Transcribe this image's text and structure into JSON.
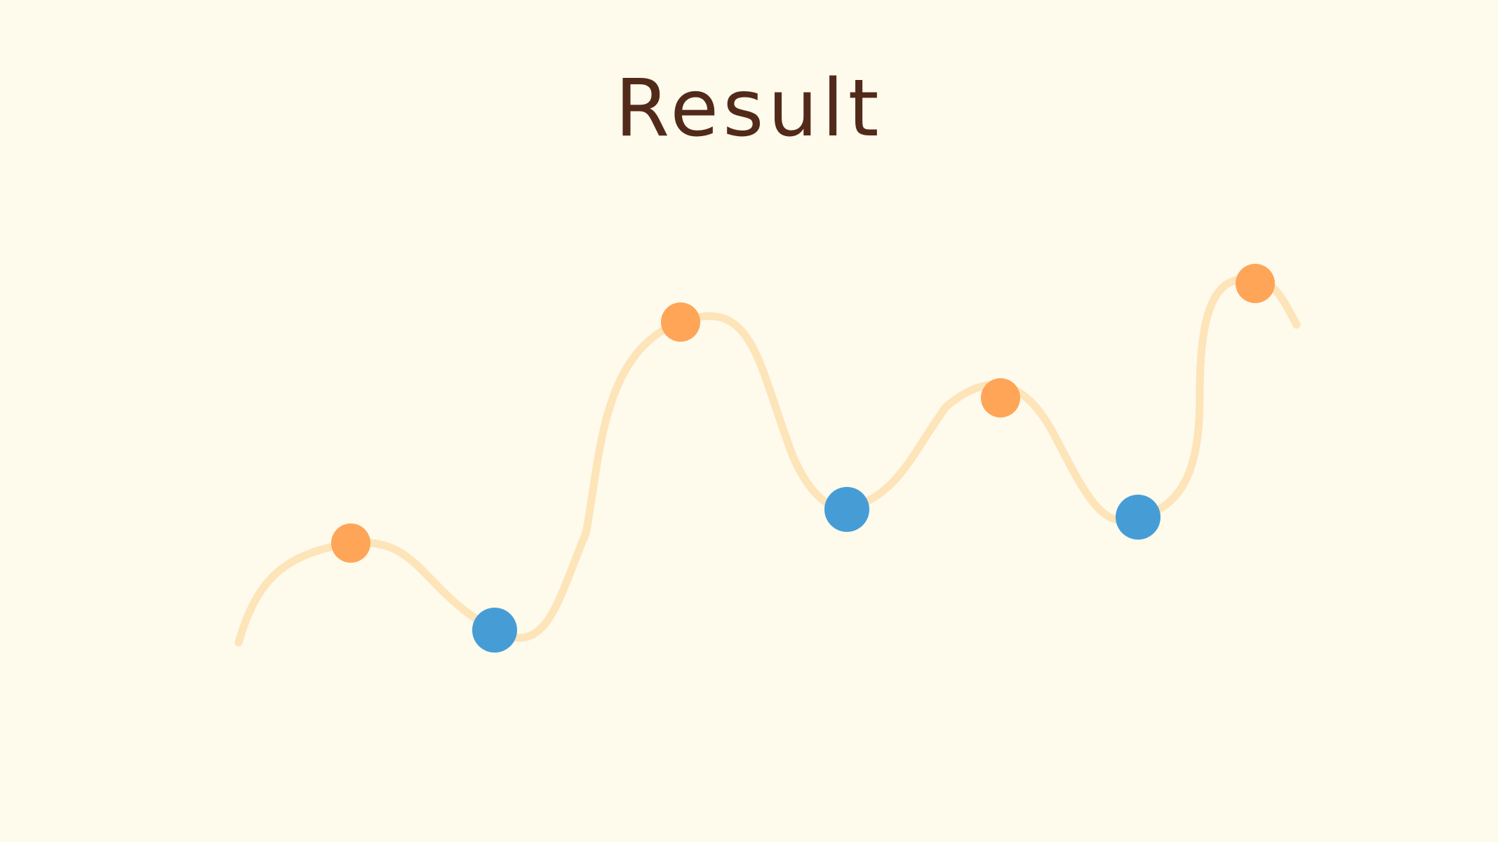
{
  "title": "Result",
  "colors": {
    "background": "#fefaec",
    "title": "#522a1a",
    "curve": "#fde4b9",
    "peak": "#fea558",
    "valley": "#469dd6"
  },
  "points": [
    {
      "kind": "peak"
    },
    {
      "kind": "valley"
    },
    {
      "kind": "peak"
    },
    {
      "kind": "valley"
    },
    {
      "kind": "peak"
    },
    {
      "kind": "valley"
    },
    {
      "kind": "peak"
    }
  ]
}
